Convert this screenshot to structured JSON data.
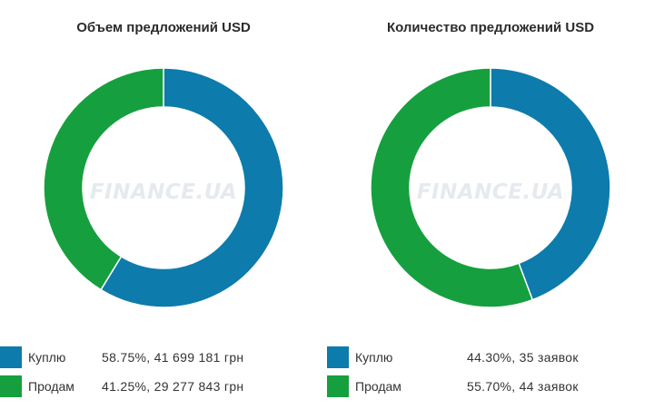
{
  "watermark": "FINANCE.UA",
  "chart_data": [
    {
      "type": "pie",
      "title": "Объем предложений USD",
      "categories": [
        "Куплю",
        "Продам"
      ],
      "values": [
        58.75,
        41.25
      ],
      "colors": [
        "#0d7bab",
        "#169f3e"
      ],
      "legend_values": [
        "58.75%, 41 699 181 грн",
        "41.25%, 29 277 843 грн"
      ],
      "legend_position": "bottom"
    },
    {
      "type": "pie",
      "title": "Количество предложений USD",
      "categories": [
        "Куплю",
        "Продам"
      ],
      "values": [
        44.3,
        55.7
      ],
      "colors": [
        "#0d7bab",
        "#169f3e"
      ],
      "legend_values": [
        "44.30%, 35 заявок",
        "55.70%, 44 заявок"
      ],
      "legend_position": "bottom"
    }
  ]
}
